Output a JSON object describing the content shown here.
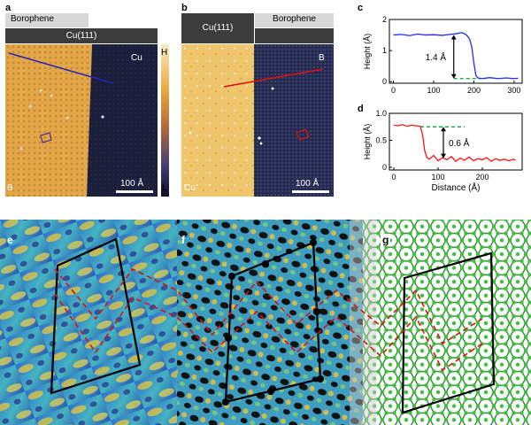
{
  "panel_a": {
    "letter": "a",
    "tag_top": "Borophene",
    "tag_bar": "Cu(111)",
    "region_right": "Cu",
    "region_left": "B",
    "scale": "100 Å"
  },
  "panel_b": {
    "letter": "b",
    "tag_top": "Borophene",
    "tag_bar": "Cu(111)",
    "region_right": "B",
    "region_left": "Cu",
    "scale": "100 Å"
  },
  "colorbar": {
    "high": "H",
    "low": "L"
  },
  "chart_data": [
    {
      "panel": "c",
      "type": "line",
      "ylabel": "Height (Å)",
      "xlabel": "",
      "xlim": [
        -10,
        320
      ],
      "ylim": [
        -0.05,
        2.0
      ],
      "xticks": [
        "0",
        "100",
        "200",
        "300"
      ],
      "yticks": [
        "0",
        "1",
        "2"
      ],
      "annotation": "1.4 Å",
      "series": [
        {
          "color": "#1f2bff",
          "x": [
            0,
            20,
            40,
            60,
            80,
            100,
            120,
            140,
            160,
            170,
            180,
            185,
            190,
            195,
            200,
            205,
            210,
            220,
            240,
            260,
            280,
            300,
            310
          ],
          "y": [
            1.5,
            1.52,
            1.48,
            1.53,
            1.5,
            1.51,
            1.49,
            1.52,
            1.55,
            1.58,
            1.52,
            1.45,
            1.35,
            1.1,
            0.6,
            0.2,
            0.12,
            0.1,
            0.13,
            0.1,
            0.12,
            0.1,
            0.11
          ]
        }
      ],
      "reference_line": {
        "y": 0.1,
        "x_from": 150,
        "x_to": 230,
        "color": "#22aa55"
      }
    },
    {
      "panel": "d",
      "type": "line",
      "ylabel": "Height (Å)",
      "xlabel": "Distance (Å)",
      "xlim": [
        -10,
        290
      ],
      "ylim": [
        -0.05,
        1.0
      ],
      "xticks": [
        "0",
        "100",
        "200"
      ],
      "yticks": [
        "0",
        "0.5",
        "1.0"
      ],
      "annotation": "0.6 Å",
      "series": [
        {
          "color": "#ff1010",
          "x": [
            0,
            10,
            20,
            30,
            40,
            50,
            60,
            65,
            70,
            75,
            80,
            90,
            100,
            110,
            120,
            130,
            140,
            150,
            160,
            170,
            180,
            190,
            200,
            210,
            220,
            230,
            240,
            250,
            260,
            270,
            275
          ],
          "y": [
            0.78,
            0.77,
            0.79,
            0.76,
            0.78,
            0.77,
            0.76,
            0.6,
            0.3,
            0.18,
            0.15,
            0.22,
            0.12,
            0.18,
            0.14,
            0.2,
            0.11,
            0.17,
            0.13,
            0.19,
            0.12,
            0.16,
            0.14,
            0.18,
            0.11,
            0.16,
            0.13,
            0.15,
            0.12,
            0.15,
            0.13
          ]
        }
      ],
      "reference_line": {
        "y": 0.75,
        "x_from": 60,
        "x_to": 160,
        "color": "#22aa55"
      }
    }
  ],
  "bottom": {
    "e_label": "e",
    "f_label": "f",
    "g_label": "g"
  }
}
